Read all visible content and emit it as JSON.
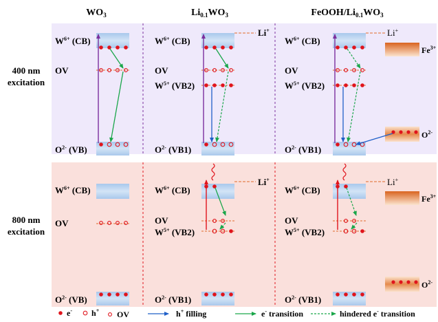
{
  "columns": {
    "c1": "WO",
    "c1_sub": "3",
    "c2_a": "Li",
    "c2_sub": "0.1",
    "c2_b": "WO",
    "c2_sub2": "3",
    "c3_a": "FeOOH/Li",
    "c3_sub": "0.1",
    "c3_b": "WO",
    "c3_sub2": "3"
  },
  "rows": {
    "r1_line1": "400 nm",
    "r1_line2": "excitation",
    "r2_line1": "800 nm",
    "r2_line2": "excitation"
  },
  "levels": {
    "W": "W",
    "W_sup6": "6+",
    "CB": " (CB)",
    "OV": "OV",
    "W_sup5": "5+",
    "VB2": " (VB2)",
    "O": "O",
    "O_sup": "2-",
    "VB": " (VB)",
    "VB1": " (VB1)",
    "Li": "Li",
    "Li_sup": "+",
    "Fe": "Fe",
    "Fe_sup": "3+",
    "O2": "O",
    "O2_sup": "2-"
  },
  "legend": {
    "e": "e",
    "e_sup": "-",
    "h": "h",
    "h_sup": "+",
    "ov": "OV",
    "h_fill": "h",
    "h_fill_sup": "+",
    "h_fill_rest": " filling",
    "e_trans": "e",
    "e_trans_sup": "-",
    "e_trans_rest": " transition",
    "hind": "hindered e",
    "hind_sup": "-",
    "hind_rest": " transition"
  },
  "colors": {
    "top_bg": "#efe9fb",
    "bottom_bg": "#fae0dc",
    "band": "#bcd6f2",
    "electron": "#e0141c",
    "hole": "#e0141c",
    "ov_line": "#e06a2a",
    "h_fill_arrow": "#1f5fc8",
    "e_transition": "#1aa64a",
    "hindered": "#1aa64a",
    "top_excitation": "#7b2f9e",
    "bottom_excitation": "#e0141c",
    "fe_band": "#e0783a"
  }
}
